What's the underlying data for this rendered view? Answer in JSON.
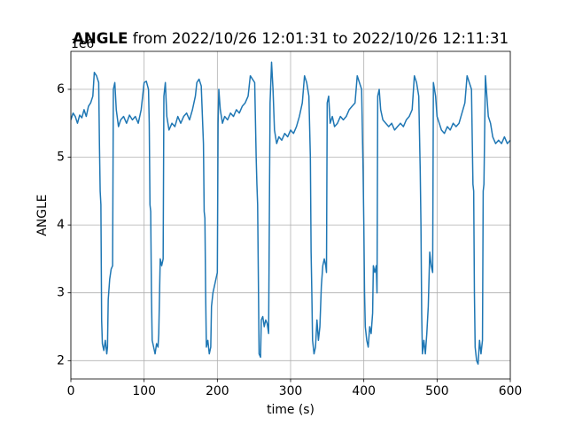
{
  "chart_data": {
    "type": "line",
    "title_bold": "ANGLE",
    "title": "from 2022/10/26 12:01:31 to 2022/10/26 12:11:31",
    "xlabel": "time (s)",
    "ylabel": "ANGLE",
    "y_offset_label": "1e6",
    "color": "#1f77b4",
    "grid": true,
    "xlim": [
      0,
      600
    ],
    "ylim": [
      1.73,
      6.56
    ],
    "xticks": [
      0,
      100,
      200,
      300,
      400,
      500,
      600
    ],
    "yticks": [
      2,
      3,
      4,
      5,
      6
    ],
    "x": [
      0,
      3,
      6,
      9,
      12,
      15,
      18,
      21,
      24,
      27,
      30,
      32,
      35,
      38,
      39,
      40,
      41,
      42,
      43,
      45,
      47,
      49,
      50,
      51,
      53,
      55,
      57,
      58,
      60,
      62,
      65,
      68,
      72,
      76,
      80,
      84,
      88,
      92,
      96,
      100,
      103,
      106,
      107,
      108,
      109,
      110,
      111,
      113,
      115,
      117,
      119,
      120,
      122,
      124,
      126,
      127,
      129,
      131,
      134,
      138,
      142,
      146,
      150,
      154,
      158,
      162,
      166,
      170,
      172,
      175,
      178,
      181,
      182,
      183,
      184,
      185,
      187,
      189,
      191,
      192,
      194,
      196,
      198,
      200,
      201,
      202,
      204,
      207,
      210,
      214,
      218,
      222,
      226,
      230,
      234,
      238,
      242,
      245,
      248,
      251,
      253,
      254,
      255,
      256,
      257,
      259,
      260,
      262,
      264,
      266,
      268,
      270,
      272,
      274,
      276,
      278,
      281,
      284,
      288,
      292,
      296,
      300,
      304,
      308,
      312,
      316,
      319,
      322,
      325,
      327,
      328,
      329,
      330,
      332,
      334,
      336,
      338,
      340,
      342,
      344,
      346,
      348,
      349,
      350,
      352,
      354,
      357,
      360,
      364,
      368,
      372,
      376,
      380,
      384,
      388,
      391,
      394,
      397,
      399,
      400,
      401,
      402,
      404,
      406,
      408,
      410,
      412,
      413,
      415,
      417,
      418,
      419,
      421,
      423,
      426,
      430,
      434,
      438,
      442,
      446,
      450,
      454,
      458,
      462,
      466,
      469,
      472,
      475,
      477,
      478,
      479,
      480,
      482,
      484,
      486,
      488,
      490,
      492,
      494,
      495,
      498,
      500,
      503,
      506,
      510,
      514,
      518,
      522,
      526,
      530,
      534,
      538,
      541,
      544,
      547,
      549,
      550,
      551,
      552,
      554,
      556,
      558,
      560,
      562,
      563,
      564,
      566,
      568,
      570,
      573,
      576,
      580,
      584,
      588,
      592,
      596,
      600
    ],
    "values": [
      5.55,
      5.65,
      5.6,
      5.5,
      5.62,
      5.58,
      5.7,
      5.6,
      5.75,
      5.8,
      5.9,
      6.25,
      6.2,
      6.1,
      5.2,
      4.5,
      4.3,
      2.6,
      2.25,
      2.15,
      2.3,
      2.1,
      2.2,
      2.9,
      3.2,
      3.35,
      3.4,
      6.0,
      6.1,
      5.7,
      5.45,
      5.55,
      5.6,
      5.5,
      5.62,
      5.55,
      5.6,
      5.5,
      5.7,
      6.1,
      6.12,
      6.0,
      5.5,
      4.3,
      4.2,
      3.0,
      2.3,
      2.2,
      2.1,
      2.25,
      2.2,
      2.4,
      3.5,
      3.4,
      3.5,
      5.9,
      6.1,
      5.6,
      5.4,
      5.5,
      5.45,
      5.6,
      5.5,
      5.6,
      5.65,
      5.55,
      5.7,
      5.9,
      6.1,
      6.15,
      6.05,
      5.2,
      4.2,
      4.1,
      3.0,
      2.2,
      2.3,
      2.1,
      2.2,
      2.8,
      3.0,
      3.1,
      3.2,
      3.3,
      5.5,
      6.0,
      5.7,
      5.5,
      5.6,
      5.55,
      5.65,
      5.6,
      5.7,
      5.65,
      5.75,
      5.8,
      5.9,
      6.2,
      6.15,
      6.1,
      5.0,
      4.6,
      4.3,
      3.2,
      2.1,
      2.05,
      2.6,
      2.65,
      2.5,
      2.6,
      2.55,
      2.4,
      5.8,
      6.4,
      6.0,
      5.4,
      5.2,
      5.3,
      5.25,
      5.35,
      5.3,
      5.4,
      5.35,
      5.45,
      5.6,
      5.8,
      6.2,
      6.1,
      5.9,
      5.0,
      3.6,
      3.0,
      2.3,
      2.1,
      2.2,
      2.6,
      2.3,
      2.5,
      3.1,
      3.4,
      3.5,
      3.4,
      3.3,
      5.8,
      5.9,
      5.5,
      5.6,
      5.45,
      5.5,
      5.6,
      5.55,
      5.6,
      5.7,
      5.75,
      5.8,
      6.2,
      6.1,
      6.0,
      4.8,
      4.0,
      3.0,
      2.5,
      2.3,
      2.2,
      2.5,
      2.4,
      2.7,
      3.4,
      3.3,
      3.4,
      3.0,
      5.9,
      6.0,
      5.7,
      5.55,
      5.5,
      5.45,
      5.5,
      5.4,
      5.45,
      5.5,
      5.45,
      5.55,
      5.6,
      5.7,
      6.2,
      6.1,
      5.9,
      4.8,
      4.0,
      2.7,
      2.1,
      2.3,
      2.1,
      2.4,
      2.8,
      3.6,
      3.4,
      3.3,
      6.1,
      5.9,
      5.6,
      5.5,
      5.4,
      5.35,
      5.45,
      5.4,
      5.5,
      5.45,
      5.5,
      5.65,
      5.8,
      6.2,
      6.1,
      6.0,
      4.6,
      4.5,
      3.0,
      2.2,
      2.0,
      1.95,
      2.3,
      2.1,
      2.3,
      4.5,
      4.6,
      6.2,
      5.9,
      5.6,
      5.5,
      5.3,
      5.2,
      5.25,
      5.2,
      5.3,
      5.2,
      5.25
    ]
  }
}
